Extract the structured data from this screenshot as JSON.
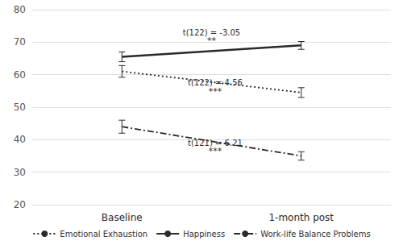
{
  "chart_data": {
    "type": "line",
    "categories": [
      "Baseline",
      "1-month post"
    ],
    "series": [
      {
        "name": "Emotional Exhaustion",
        "color": "#2a2a2a",
        "line_style": "dotted",
        "values": [
          61.0,
          54.5
        ],
        "errors": [
          1.8,
          1.5
        ]
      },
      {
        "name": "Happiness",
        "color": "#2a2a2a",
        "line_style": "solid",
        "values": [
          65.5,
          69.0
        ],
        "errors": [
          1.5,
          1.2
        ]
      },
      {
        "name": "Work-life Balance Problems",
        "color": "#2a2a2a",
        "line_style": "dashdot",
        "values": [
          44.0,
          35.0
        ],
        "errors": [
          2.0,
          1.3
        ]
      }
    ],
    "annotations": [
      {
        "text": "t(122) = -3.05",
        "x": 0.5,
        "y": 71.5
      },
      {
        "text": "**",
        "x": 0.5,
        "y": 69.3
      },
      {
        "text": "t(122) = 4.56",
        "x": 0.52,
        "y": 56.0
      },
      {
        "text": "***",
        "x": 0.52,
        "y": 53.8
      },
      {
        "text": "t(121) = 6.21",
        "x": 0.52,
        "y": 37.5
      },
      {
        "text": "***",
        "x": 0.52,
        "y": 35.3
      }
    ],
    "ylim": [
      20,
      80
    ],
    "yticks": [
      20,
      30,
      40,
      50,
      60,
      70,
      80
    ],
    "grid": true,
    "legend": "bottom"
  }
}
